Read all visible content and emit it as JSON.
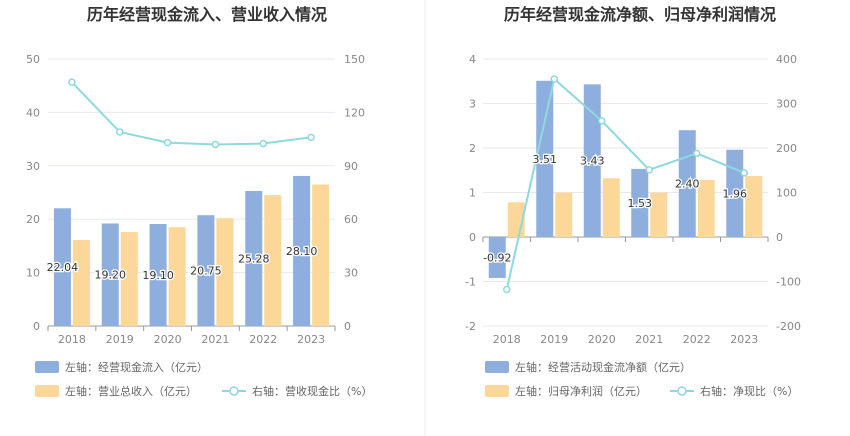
{
  "chart_data": [
    {
      "type": "bar",
      "title": "历年经营现金流入、营业收入情况",
      "categories": [
        "2018",
        "2019",
        "2020",
        "2021",
        "2022",
        "2023"
      ],
      "ylim_left": [
        0,
        50
      ],
      "ylim_right": [
        0,
        150
      ],
      "yticks_left": [
        "0",
        "10",
        "20",
        "30",
        "40",
        "50"
      ],
      "yticks_right": [
        "0",
        "30",
        "60",
        "90",
        "120",
        "150"
      ],
      "grid": true,
      "legend_position": "bottom-left",
      "series": [
        {
          "name": "左轴：经营现金流入（亿元）",
          "type": "bar",
          "axis": "left",
          "color": "#8eaedd",
          "values": [
            22.04,
            19.2,
            19.1,
            20.75,
            25.28,
            28.1
          ],
          "labels": [
            "22.04",
            "19.20",
            "19.10",
            "20.75",
            "25.28",
            "28.10"
          ]
        },
        {
          "name": "左轴：营业总收入（亿元）",
          "type": "bar",
          "axis": "left",
          "color": "#fcd79a",
          "values": [
            16.1,
            17.6,
            18.5,
            20.2,
            24.5,
            26.5
          ]
        },
        {
          "name": "右轴：营收现金比（%）",
          "type": "line",
          "axis": "right",
          "color": "#8ed9de",
          "values": [
            137,
            109,
            103,
            102,
            102.5,
            106
          ]
        }
      ]
    },
    {
      "type": "bar",
      "title": "历年经营现金流净额、归母净利润情况",
      "categories": [
        "2018",
        "2019",
        "2020",
        "2021",
        "2022",
        "2023"
      ],
      "ylim_left": [
        -2,
        4
      ],
      "ylim_right": [
        -200,
        400
      ],
      "yticks_left": [
        "-2",
        "-1",
        "0",
        "1",
        "2",
        "3",
        "4"
      ],
      "yticks_right": [
        "-200",
        "-100",
        "0",
        "100",
        "200",
        "300",
        "400"
      ],
      "grid": true,
      "legend_position": "bottom-left",
      "series": [
        {
          "name": "左轴：经营活动现金流净额（亿元）",
          "type": "bar",
          "axis": "left",
          "color": "#8eaedd",
          "values": [
            -0.92,
            3.51,
            3.43,
            1.53,
            2.4,
            1.96
          ],
          "labels": [
            "-0.92",
            "3.51",
            "3.43",
            "1.53",
            "2.40",
            "1.96"
          ]
        },
        {
          "name": "左轴：归母净利润（亿元）",
          "type": "bar",
          "axis": "left",
          "color": "#fcd79a",
          "values": [
            0.78,
            1.0,
            1.32,
            1.0,
            1.28,
            1.37
          ]
        },
        {
          "name": "右轴：净现比（%）",
          "type": "line",
          "axis": "right",
          "color": "#8ed9de",
          "values": [
            -118,
            355,
            261,
            151,
            188,
            144
          ]
        }
      ]
    }
  ]
}
